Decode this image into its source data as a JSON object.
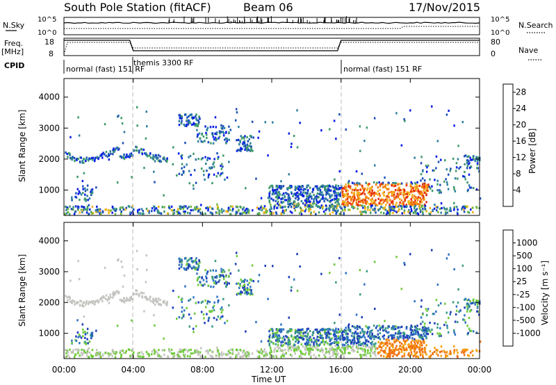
{
  "header": {
    "title": "South Pole Station (fitACF)",
    "beam": "Beam 06",
    "date": "17/Nov/2015"
  },
  "panels": {
    "nsky_label": "N.Sky",
    "nsearch_label": "N.Search",
    "nsky_ticks": [
      "10^5",
      "10^0"
    ],
    "freq_label_1": "Freq.",
    "freq_label_2": "[MHz]",
    "freq_ticks": [
      "18",
      "8"
    ],
    "nave_label": "Nave",
    "nave_ticks": [
      "80",
      "0"
    ],
    "cpid_label": "CPID",
    "cpid_segments": [
      {
        "label": "normal (fast) 151 RF",
        "start_hour": 0
      },
      {
        "label": "themis 3300 RF",
        "start_hour": 4
      },
      {
        "label": "normal (fast) 151 RF",
        "start_hour": 16
      }
    ]
  },
  "chart_data": [
    {
      "type": "heatmap",
      "title": "",
      "xlabel": "Time UT",
      "ylabel": "Slant Range [km]",
      "x_ticks": [
        "00:00",
        "04:00",
        "08:00",
        "12:00",
        "16:00",
        "20:00",
        "00:00"
      ],
      "xlim_hours": [
        0,
        24
      ],
      "y_ticks": [
        1000,
        2000,
        3000,
        4000
      ],
      "ylim": [
        180,
        4600
      ],
      "colorbar": {
        "label": "Power [dB]",
        "ticks": [
          4,
          8,
          12,
          16,
          20,
          24,
          28
        ],
        "range": [
          0,
          30
        ],
        "colors": [
          "#0a1ee8",
          "#1c4fb8",
          "#2e7fa0",
          "#3f9a6a",
          "#70b840",
          "#f2b21a",
          "#f07a10",
          "#e82a0c"
        ]
      }
    },
    {
      "type": "heatmap",
      "title": "",
      "xlabel": "Time UT",
      "ylabel": "Slant Range [km]",
      "x_ticks": [
        "00:00",
        "04:00",
        "08:00",
        "12:00",
        "16:00",
        "20:00",
        "00:00"
      ],
      "xlim_hours": [
        0,
        24
      ],
      "y_ticks": [
        1000,
        2000,
        3000,
        4000
      ],
      "ylim": [
        180,
        4600
      ],
      "colorbar": {
        "label": "Velocity [m s⁻¹]",
        "ticks": [
          1000,
          500,
          100,
          25,
          -25,
          -100,
          -500,
          -1000
        ],
        "colors": [
          "#1e3fb8",
          "#2e73c2",
          "#3a9a86",
          "#6fcb3a",
          "#c4c4c0",
          "#f5a010",
          "#f07010",
          "#e83010",
          "#e80000"
        ]
      }
    }
  ]
}
